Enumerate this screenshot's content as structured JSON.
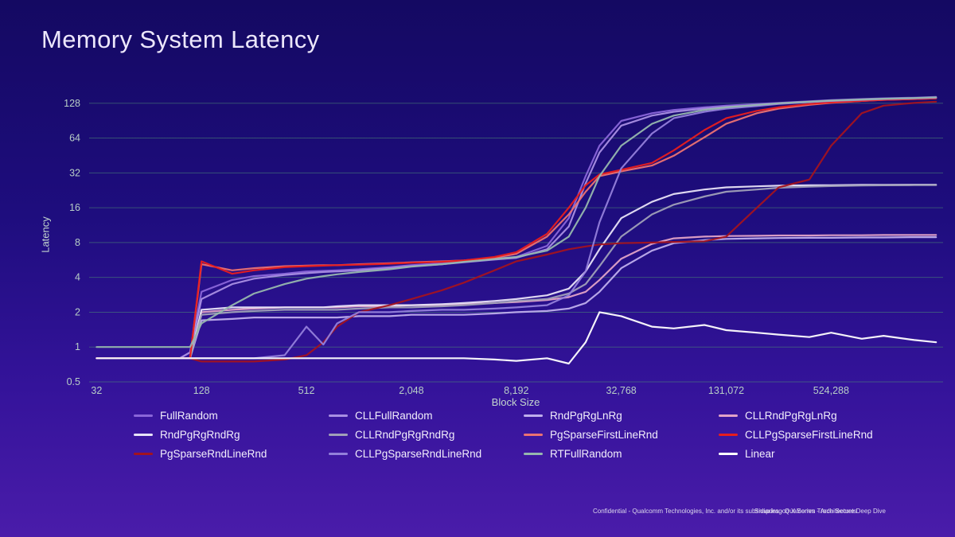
{
  "title": "Memory System Latency",
  "footer": {
    "confidential": "Confidential - Qualcomm Technologies, Inc. and/or its subsidiaries - Qualcomm Trade Secrets",
    "deck": "Snapdragon X Series - Architecture Deep Dive"
  },
  "chart_data": {
    "type": "line",
    "title": "Memory System Latency",
    "x_label": "Block Size",
    "y_label": "Latency",
    "x_scale": "log2",
    "y_scale": "log2",
    "grid": "horizontal-only",
    "legend_position": "bottom",
    "x_range": [
      29,
      2300000
    ],
    "y_range": [
      0.5,
      175
    ],
    "x_ticks": [
      {
        "v": 32,
        "label": "32"
      },
      {
        "v": 128,
        "label": "128"
      },
      {
        "v": 512,
        "label": "512"
      },
      {
        "v": 2048,
        "label": "2,048"
      },
      {
        "v": 8192,
        "label": "8,192"
      },
      {
        "v": 32768,
        "label": "32,768"
      },
      {
        "v": 131072,
        "label": "131,072"
      },
      {
        "v": 524288,
        "label": "524,288"
      }
    ],
    "y_ticks": [
      {
        "v": 128,
        "label": "128"
      },
      {
        "v": 64,
        "label": "64"
      },
      {
        "v": 32,
        "label": "32"
      },
      {
        "v": 16,
        "label": "16"
      },
      {
        "v": 8,
        "label": "8"
      },
      {
        "v": 4,
        "label": "4"
      },
      {
        "v": 2,
        "label": "2"
      },
      {
        "v": 1,
        "label": "1"
      },
      {
        "v": 0.5,
        "label": "0.5"
      }
    ],
    "x": [
      32,
      64,
      96,
      110,
      128,
      192,
      256,
      384,
      512,
      640,
      768,
      1024,
      1536,
      2048,
      3072,
      4096,
      6144,
      8192,
      12288,
      16384,
      20480,
      24576,
      32768,
      49152,
      65536,
      98304,
      131072,
      196608,
      262144,
      393216,
      524288,
      786432,
      1048576,
      1572864,
      2097152
    ],
    "series": [
      {
        "name": "FullRandom",
        "color": "#8a66d9",
        "values": [
          0.8,
          0.8,
          0.8,
          0.9,
          3.0,
          3.8,
          4.1,
          4.3,
          4.5,
          4.55,
          4.6,
          4.7,
          4.9,
          5.1,
          5.3,
          5.5,
          5.8,
          6.0,
          7.5,
          13,
          30,
          55,
          90,
          105,
          112,
          118,
          122,
          126,
          129,
          133,
          136,
          139,
          141,
          143,
          145
        ]
      },
      {
        "name": "CLLFullRandom",
        "color": "#a98fe3",
        "values": [
          0.8,
          0.8,
          0.8,
          0.9,
          2.6,
          3.5,
          3.9,
          4.2,
          4.35,
          4.45,
          4.5,
          4.6,
          4.8,
          5.0,
          5.2,
          5.4,
          5.7,
          5.9,
          7.0,
          11,
          26,
          48,
          82,
          100,
          108,
          115,
          119,
          123,
          127,
          131,
          134,
          137,
          139,
          141,
          143
        ]
      },
      {
        "name": "RndPgRgLnRg",
        "color": "#bfaeec",
        "values": [
          0.8,
          0.8,
          0.8,
          0.8,
          1.7,
          1.75,
          1.8,
          1.8,
          1.8,
          1.8,
          1.8,
          1.85,
          1.85,
          1.9,
          1.9,
          1.9,
          1.95,
          2.0,
          2.05,
          2.15,
          2.4,
          3.0,
          4.8,
          6.8,
          7.9,
          8.4,
          8.6,
          8.7,
          8.75,
          8.8,
          8.8,
          8.85,
          8.85,
          8.9,
          8.9
        ]
      },
      {
        "name": "CLLRndPgRgLnRg",
        "color": "#e2a3c7",
        "values": [
          0.8,
          0.8,
          0.8,
          0.8,
          2.0,
          2.1,
          2.15,
          2.2,
          2.2,
          2.2,
          2.2,
          2.25,
          2.25,
          2.3,
          2.3,
          2.35,
          2.4,
          2.45,
          2.55,
          2.7,
          3.0,
          3.8,
          5.8,
          7.8,
          8.7,
          9.0,
          9.1,
          9.15,
          9.2,
          9.2,
          9.25,
          9.25,
          9.3,
          9.3,
          9.3
        ]
      },
      {
        "name": "RndPgRgRndRg",
        "color": "#e8e3f7",
        "values": [
          0.8,
          0.8,
          0.8,
          0.8,
          2.1,
          2.2,
          2.2,
          2.2,
          2.2,
          2.2,
          2.25,
          2.3,
          2.3,
          2.3,
          2.35,
          2.4,
          2.5,
          2.6,
          2.8,
          3.2,
          4.5,
          7,
          13,
          18,
          21,
          23,
          24,
          24.5,
          24.8,
          25,
          25,
          25.2,
          25.2,
          25.3,
          25.3
        ]
      },
      {
        "name": "CLLRndPgRgRndRg",
        "color": "#a0a0b8",
        "values": [
          0.8,
          0.8,
          0.8,
          0.8,
          1.9,
          2.0,
          2.05,
          2.1,
          2.1,
          2.1,
          2.1,
          2.15,
          2.2,
          2.2,
          2.25,
          2.3,
          2.4,
          2.5,
          2.6,
          2.9,
          3.5,
          5,
          9,
          14,
          17,
          20,
          22,
          23,
          23.8,
          24.3,
          24.6,
          24.9,
          25,
          25.1,
          25.1
        ]
      },
      {
        "name": "PgSparseFirstLineRnd",
        "color": "#ec7272",
        "values": [
          0.8,
          0.8,
          0.8,
          0.8,
          5.2,
          4.6,
          4.8,
          5.0,
          5.05,
          5.1,
          5.1,
          5.2,
          5.3,
          5.4,
          5.5,
          5.6,
          5.9,
          6.4,
          9,
          14,
          22,
          30,
          33,
          37,
          45,
          65,
          85,
          105,
          115,
          124,
          129,
          134,
          137,
          139,
          141
        ]
      },
      {
        "name": "CLLPgSparseFirstLineRnd",
        "color": "#e81d1d",
        "values": [
          0.8,
          0.8,
          0.8,
          0.8,
          5.5,
          4.3,
          4.6,
          4.9,
          5.0,
          5.05,
          5.1,
          5.15,
          5.25,
          5.35,
          5.45,
          5.6,
          6.0,
          6.6,
          9.5,
          16,
          25,
          31,
          34,
          39,
          50,
          75,
          95,
          110,
          118,
          126,
          130,
          134,
          137,
          139,
          141
        ]
      },
      {
        "name": "PgSparseRndLineRnd",
        "color": "#a3131f",
        "values": [
          0.8,
          0.8,
          0.8,
          0.8,
          0.75,
          0.75,
          0.75,
          0.78,
          0.85,
          1.1,
          1.5,
          2.0,
          2.3,
          2.6,
          3.1,
          3.6,
          4.6,
          5.5,
          6.3,
          7.0,
          7.4,
          7.7,
          7.9,
          8.0,
          8.1,
          8.2,
          9.0,
          16,
          24,
          28,
          55,
          105,
          122,
          129,
          132
        ]
      },
      {
        "name": "CLLPgSparseRndLineRnd",
        "color": "#9380db",
        "values": [
          0.8,
          0.8,
          0.8,
          0.8,
          0.8,
          0.8,
          0.8,
          0.85,
          1.5,
          1.05,
          1.6,
          2.0,
          2.0,
          2.05,
          2.1,
          2.1,
          2.15,
          2.2,
          2.3,
          2.8,
          4.5,
          12,
          35,
          70,
          95,
          108,
          115,
          121,
          126,
          131,
          134,
          137,
          139,
          141,
          143
        ]
      },
      {
        "name": "RTFullRandom",
        "color": "#96b7ae",
        "values": [
          1.0,
          1.0,
          1.0,
          1.0,
          1.6,
          2.3,
          2.9,
          3.5,
          3.9,
          4.1,
          4.25,
          4.45,
          4.7,
          4.95,
          5.2,
          5.45,
          5.75,
          6.0,
          6.8,
          9,
          16,
          30,
          55,
          85,
          100,
          112,
          118,
          124,
          128,
          132,
          135,
          138,
          140,
          142,
          144
        ]
      },
      {
        "name": "Linear",
        "color": "#ffffff",
        "values": [
          0.8,
          0.8,
          0.8,
          0.8,
          0.8,
          0.8,
          0.8,
          0.8,
          0.8,
          0.8,
          0.8,
          0.8,
          0.8,
          0.8,
          0.8,
          0.8,
          0.78,
          0.76,
          0.8,
          0.72,
          1.1,
          2.0,
          1.85,
          1.5,
          1.45,
          1.55,
          1.4,
          1.33,
          1.28,
          1.22,
          1.33,
          1.18,
          1.25,
          1.15,
          1.1
        ]
      }
    ]
  }
}
